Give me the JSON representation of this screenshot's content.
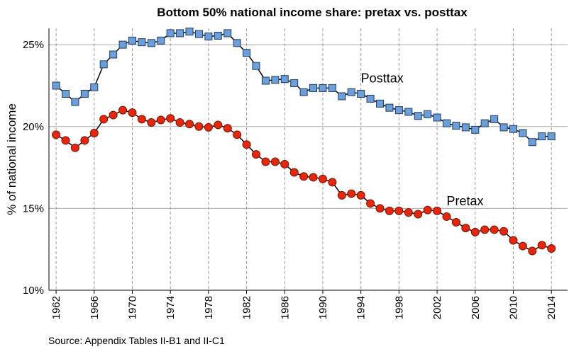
{
  "chart_data": {
    "type": "line",
    "title": "Bottom 50% national income share: pretax vs. posttax",
    "y_label": "% of national income",
    "source": "Source: Appendix Tables II-B1 and II-C1",
    "x": [
      1962,
      1963,
      1964,
      1965,
      1966,
      1967,
      1968,
      1969,
      1970,
      1971,
      1972,
      1973,
      1974,
      1975,
      1976,
      1977,
      1978,
      1979,
      1980,
      1981,
      1982,
      1983,
      1984,
      1985,
      1986,
      1987,
      1988,
      1989,
      1990,
      1991,
      1992,
      1993,
      1994,
      1995,
      1996,
      1997,
      1998,
      1999,
      2000,
      2001,
      2002,
      2003,
      2004,
      2005,
      2006,
      2007,
      2008,
      2009,
      2010,
      2011,
      2012,
      2013,
      2014
    ],
    "series": [
      {
        "name": "Posttax",
        "color": "#6b9fda",
        "marker": "square",
        "values": [
          22.5,
          22.0,
          21.5,
          22.0,
          22.4,
          23.8,
          24.4,
          25.0,
          25.25,
          25.15,
          25.1,
          25.25,
          25.7,
          25.7,
          25.8,
          25.65,
          25.5,
          25.55,
          25.7,
          25.1,
          24.5,
          23.7,
          22.8,
          22.85,
          22.9,
          22.65,
          22.1,
          22.35,
          22.35,
          22.35,
          21.85,
          22.1,
          22.0,
          21.7,
          21.4,
          21.15,
          21.0,
          20.9,
          20.65,
          20.75,
          20.55,
          20.2,
          20.05,
          19.95,
          19.8,
          20.2,
          20.45,
          19.95,
          19.85,
          19.6,
          19.05,
          19.4,
          19.4
        ]
      },
      {
        "name": "Pretax",
        "color": "#e8260c",
        "marker": "circle",
        "values": [
          19.5,
          19.15,
          18.7,
          19.15,
          19.6,
          20.45,
          20.7,
          21.0,
          20.85,
          20.45,
          20.25,
          20.4,
          20.5,
          20.25,
          20.15,
          20.0,
          19.95,
          20.1,
          19.9,
          19.5,
          18.9,
          18.3,
          17.85,
          17.85,
          17.7,
          17.2,
          16.95,
          16.9,
          16.8,
          16.6,
          15.8,
          15.9,
          15.8,
          15.3,
          15.0,
          14.85,
          14.85,
          14.75,
          14.65,
          14.9,
          14.85,
          14.5,
          14.15,
          13.8,
          13.55,
          13.7,
          13.7,
          13.6,
          13.05,
          12.7,
          12.4,
          12.75,
          12.55
        ]
      }
    ],
    "xlim": [
      1961.25,
      2015.7
    ],
    "xticks": [
      1962,
      1966,
      1970,
      1974,
      1978,
      1982,
      1986,
      1990,
      1994,
      1998,
      2002,
      2006,
      2010,
      2014
    ],
    "ylim": [
      10,
      26
    ],
    "yticks": [
      {
        "value": 10,
        "label": "10%"
      },
      {
        "value": 15,
        "label": "15%"
      },
      {
        "value": 20,
        "label": "20%"
      },
      {
        "value": 25,
        "label": "25%"
      }
    ],
    "grid": true
  }
}
